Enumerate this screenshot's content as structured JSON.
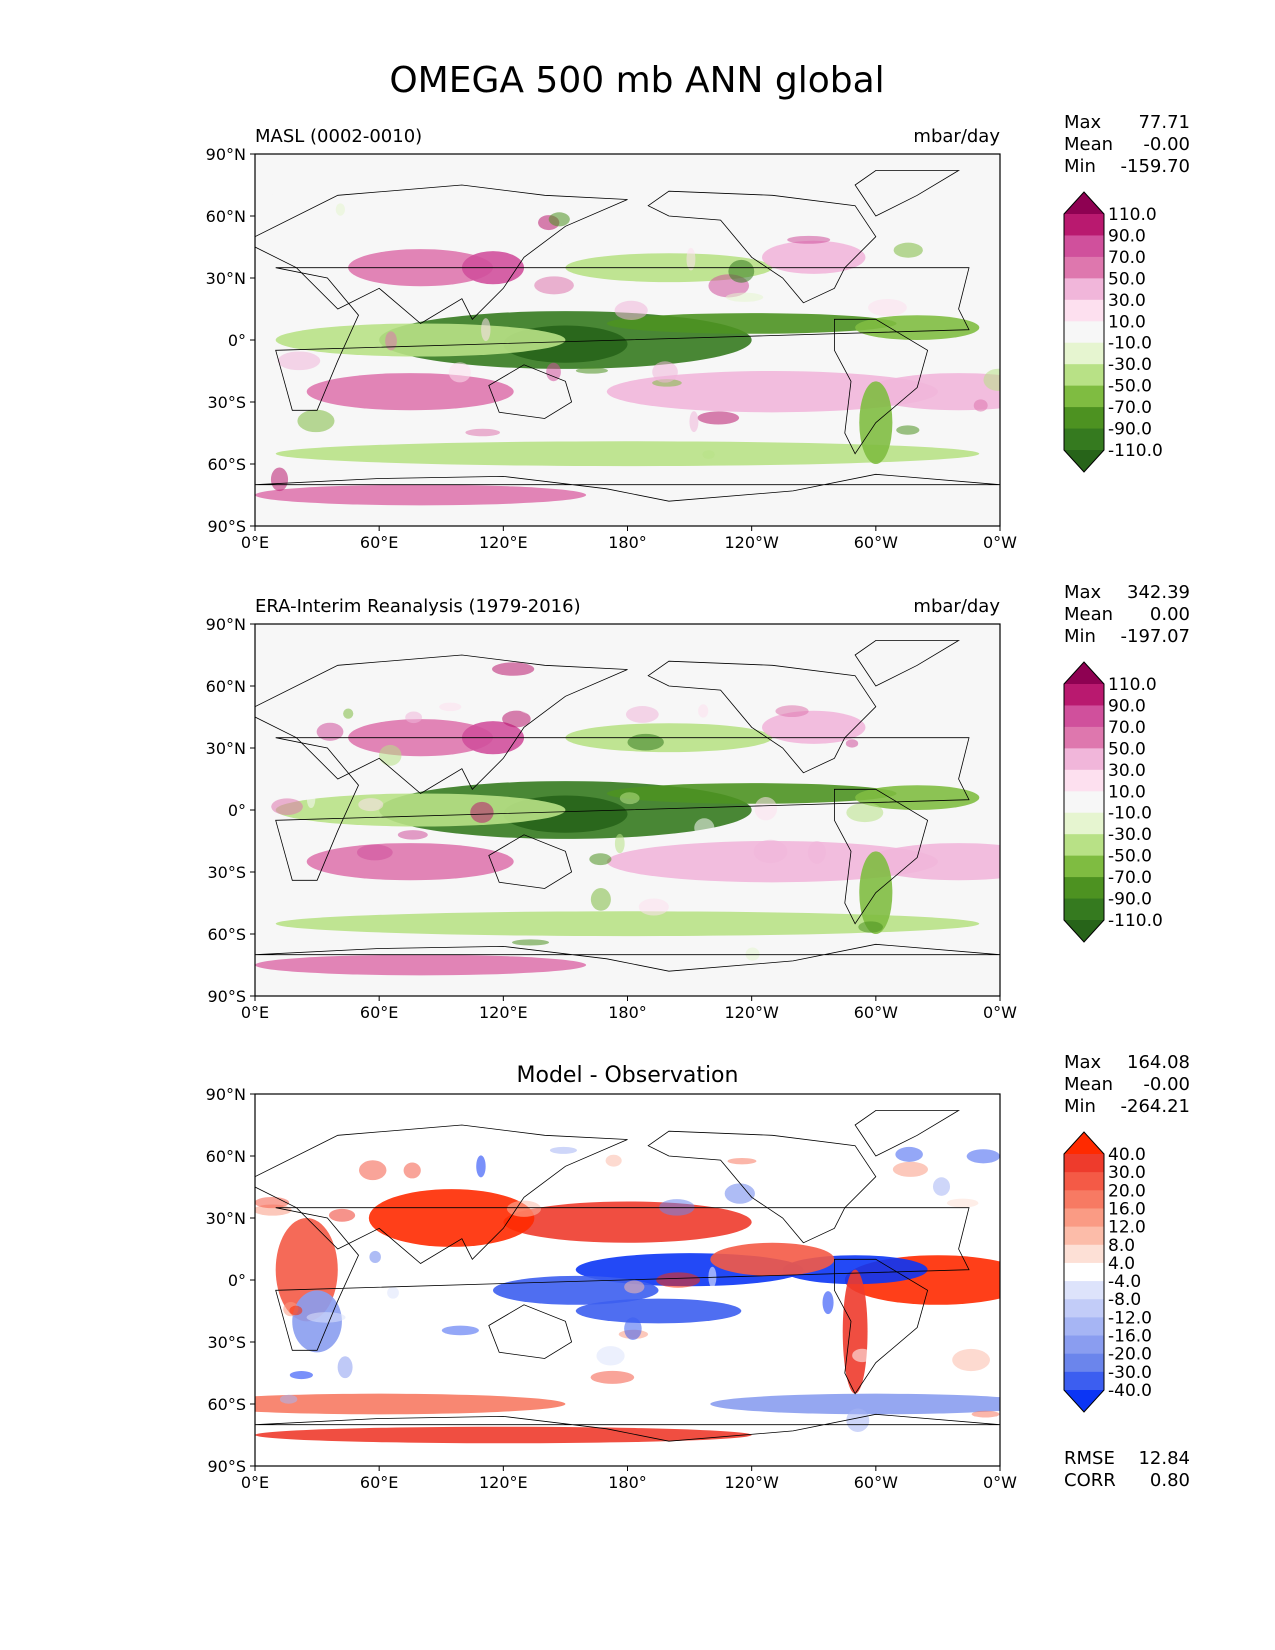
{
  "figure": {
    "title": "OMEGA 500 mb ANN global"
  },
  "axes": {
    "lat_ticks": [
      "90°N",
      "60°N",
      "30°N",
      "0°",
      "30°S",
      "60°S",
      "90°S"
    ],
    "lon_ticks": [
      "0°E",
      "60°E",
      "120°E",
      "180°",
      "120°W",
      "60°W",
      "0°W"
    ]
  },
  "chart_data": [
    {
      "type": "heatmap",
      "name": "model",
      "title_left": "MASL (0002-0010)",
      "title_right": "mbar/day",
      "stats": {
        "max_label": "Max",
        "max": "77.71",
        "mean_label": "Mean",
        "mean": "-0.00",
        "min_label": "Min",
        "min": "-159.70"
      },
      "colorbar": {
        "levels": [
          "110.0",
          "90.0",
          "70.0",
          "50.0",
          "30.0",
          "10.0",
          "-10.0",
          "-30.0",
          "-50.0",
          "-70.0",
          "-90.0",
          "-110.0"
        ],
        "colors": [
          "#8e0152",
          "#b9196f",
          "#d0509c",
          "#de77ae",
          "#f1b6da",
          "#fde0ef",
          "#f7f7f7",
          "#e6f5d0",
          "#b8e186",
          "#7fbc41",
          "#4d9221",
          "#357a1f",
          "#276419"
        ]
      },
      "xlim": [
        0,
        360
      ],
      "ylim": [
        -90,
        90
      ]
    },
    {
      "type": "heatmap",
      "name": "observation",
      "title_left": "ERA-Interim Reanalysis (1979-2016)",
      "title_right": "mbar/day",
      "stats": {
        "max_label": "Max",
        "max": "342.39",
        "mean_label": "Mean",
        "mean": "0.00",
        "min_label": "Min",
        "min": "-197.07"
      },
      "colorbar": {
        "levels": [
          "110.0",
          "90.0",
          "70.0",
          "50.0",
          "30.0",
          "10.0",
          "-10.0",
          "-30.0",
          "-50.0",
          "-70.0",
          "-90.0",
          "-110.0"
        ],
        "colors": [
          "#8e0152",
          "#b9196f",
          "#d0509c",
          "#de77ae",
          "#f1b6da",
          "#fde0ef",
          "#f7f7f7",
          "#e6f5d0",
          "#b8e186",
          "#7fbc41",
          "#4d9221",
          "#357a1f",
          "#276419"
        ]
      },
      "xlim": [
        0,
        360
      ],
      "ylim": [
        -90,
        90
      ]
    },
    {
      "type": "heatmap",
      "name": "difference",
      "title_center": "Model - Observation",
      "stats": {
        "max_label": "Max",
        "max": "164.08",
        "mean_label": "Mean",
        "mean": "-0.00",
        "min_label": "Min",
        "min": "-264.21"
      },
      "metrics": {
        "rmse_label": "RMSE",
        "rmse": "12.84",
        "corr_label": "CORR",
        "corr": "0.80"
      },
      "colorbar": {
        "levels": [
          "40.0",
          "30.0",
          "20.0",
          "16.0",
          "12.0",
          "8.0",
          "4.0",
          "-4.0",
          "-8.0",
          "-12.0",
          "-16.0",
          "-20.0",
          "-30.0",
          "-40.0"
        ],
        "colors": [
          "#ff2a00",
          "#ee3b2c",
          "#f45a46",
          "#f77a63",
          "#fa9b84",
          "#fcbca9",
          "#fde0d6",
          "#ffffff",
          "#dde3fb",
          "#c2ccf8",
          "#a6b5f4",
          "#8a9df0",
          "#6b85ec",
          "#3c5ef0",
          "#0b35f5"
        ]
      },
      "xlim": [
        0,
        360
      ],
      "ylim": [
        -90,
        90
      ]
    }
  ]
}
